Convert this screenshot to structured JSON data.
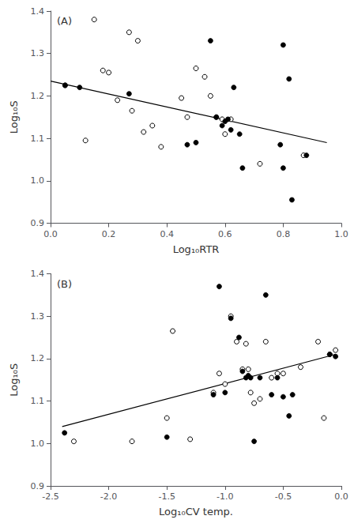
{
  "chart_data": [
    {
      "type": "scatter",
      "annotation": "(A)",
      "xlabel": "Log₁₀RTR",
      "ylabel": "Log₁₀S",
      "xlim": [
        0.0,
        1.0
      ],
      "ylim": [
        0.9,
        1.4
      ],
      "xticks": [
        {
          "value": 0.0,
          "label": "0.0"
        },
        0.2,
        0.4,
        0.6,
        0.8,
        {
          "value": 1.0,
          "label": "1.0"
        }
      ],
      "yticks": [
        0.9,
        {
          "value": 1.0,
          "label": "1.0"
        },
        1.1,
        1.2,
        1.3,
        1.4
      ],
      "grid": false,
      "series": [
        {
          "type": "scatter",
          "marker": "open_circle",
          "color": "#ffffff",
          "x": [
            0.05,
            0.12,
            0.15,
            0.18,
            0.2,
            0.23,
            0.27,
            0.28,
            0.3,
            0.32,
            0.35,
            0.38,
            0.45,
            0.47,
            0.5,
            0.53,
            0.55,
            0.57,
            0.59,
            0.6,
            0.62,
            0.72,
            0.87
          ],
          "values": [
            1.225,
            1.095,
            1.38,
            1.26,
            1.255,
            1.19,
            1.35,
            1.165,
            1.33,
            1.115,
            1.13,
            1.08,
            1.195,
            1.15,
            1.265,
            1.245,
            1.2,
            1.15,
            1.145,
            1.11,
            1.145,
            1.04,
            1.06
          ]
        },
        {
          "type": "scatter",
          "marker": "circle",
          "color": "#000000",
          "x": [
            0.05,
            0.1,
            0.27,
            0.47,
            0.5,
            0.55,
            0.57,
            0.59,
            0.6,
            0.61,
            0.62,
            0.63,
            0.65,
            0.66,
            0.79,
            0.8,
            0.8,
            0.82,
            0.83,
            0.88
          ],
          "values": [
            1.225,
            1.22,
            1.205,
            1.085,
            1.09,
            1.33,
            1.15,
            1.13,
            1.14,
            1.145,
            1.12,
            1.22,
            1.11,
            1.03,
            1.085,
            1.32,
            1.03,
            1.24,
            0.955,
            1.06
          ]
        },
        {
          "type": "line",
          "line_style": "solid",
          "color": "#000000",
          "x": [
            0.0,
            0.95
          ],
          "values": [
            1.235,
            1.09
          ]
        }
      ]
    },
    {
      "type": "scatter",
      "annotation": "(B)",
      "xlabel": "Log₁₀CV temp.",
      "ylabel": "Log₁₀S",
      "xlim": [
        -2.5,
        0.0
      ],
      "ylim": [
        0.9,
        1.4
      ],
      "xticks": [
        -2.5,
        {
          "value": -2.0,
          "label": "-2.0"
        },
        -1.5,
        {
          "value": -1.0,
          "label": "-1.0"
        },
        -0.5,
        {
          "value": 0.0,
          "label": "0.0"
        }
      ],
      "yticks": [
        0.9,
        {
          "value": 1.0,
          "label": "1.0"
        },
        1.1,
        1.2,
        1.3,
        1.4
      ],
      "grid": false,
      "series": [
        {
          "type": "scatter",
          "marker": "open_circle",
          "color": "#ffffff",
          "x": [
            -2.3,
            -1.8,
            -1.5,
            -1.45,
            -1.3,
            -1.1,
            -1.05,
            -1.0,
            -0.95,
            -0.9,
            -0.85,
            -0.82,
            -0.8,
            -0.78,
            -0.75,
            -0.7,
            -0.65,
            -0.6,
            -0.55,
            -0.5,
            -0.35,
            -0.2,
            -0.15,
            -0.1,
            -0.05
          ],
          "values": [
            1.005,
            1.005,
            1.06,
            1.265,
            1.01,
            1.12,
            1.165,
            1.14,
            1.3,
            1.24,
            1.175,
            1.235,
            1.175,
            1.12,
            1.095,
            1.105,
            1.24,
            1.155,
            1.165,
            1.165,
            1.18,
            1.24,
            1.06,
            1.21,
            1.22
          ]
        },
        {
          "type": "scatter",
          "marker": "circle",
          "color": "#000000",
          "x": [
            -2.38,
            -1.5,
            -1.1,
            -1.05,
            -1.0,
            -0.95,
            -0.88,
            -0.85,
            -0.82,
            -0.8,
            -0.78,
            -0.75,
            -0.7,
            -0.65,
            -0.6,
            -0.55,
            -0.5,
            -0.45,
            -0.42,
            -0.1,
            -0.05
          ],
          "values": [
            1.025,
            1.015,
            1.115,
            1.37,
            1.12,
            1.295,
            1.25,
            1.17,
            1.155,
            1.16,
            1.155,
            1.005,
            1.155,
            1.35,
            1.115,
            1.155,
            1.11,
            1.065,
            1.115,
            1.21,
            1.205
          ]
        },
        {
          "type": "line",
          "line_style": "solid",
          "color": "#000000",
          "x": [
            -2.4,
            -0.05
          ],
          "values": [
            1.04,
            1.21
          ]
        }
      ]
    }
  ]
}
